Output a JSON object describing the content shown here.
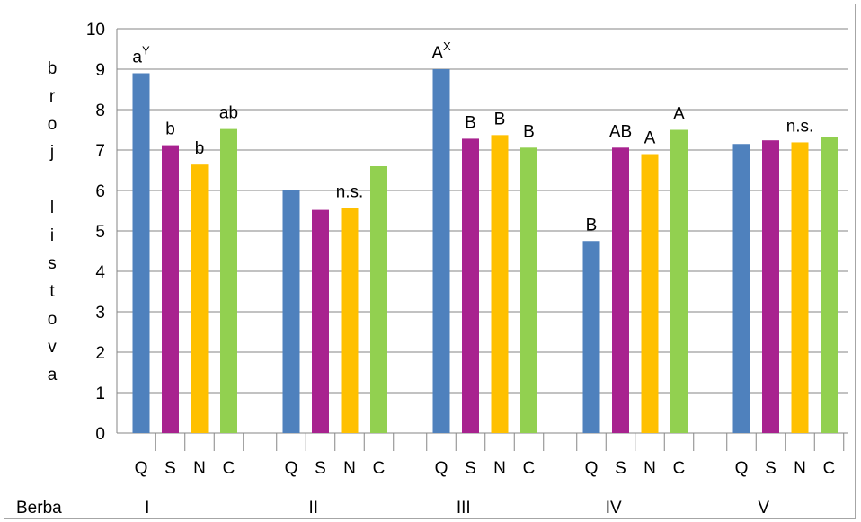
{
  "chart_data": {
    "type": "bar",
    "title": "",
    "ylabel": "broj listova",
    "ylabel_letters": [
      "b",
      "r",
      "o",
      "j",
      "",
      "l",
      "i",
      "s",
      "t",
      "o",
      "v",
      "a"
    ],
    "xlabel": "Berba",
    "ylim": [
      0,
      10
    ],
    "yticks": [
      "0",
      "1",
      "2",
      "3",
      "4",
      "5",
      "6",
      "7",
      "8",
      "9",
      "10"
    ],
    "grid": true,
    "legend": "none",
    "series_labels": [
      "Q",
      "S",
      "N",
      "C"
    ],
    "series_colors": [
      "#4f81bd",
      "#a8228f",
      "#ffc000",
      "#92d050"
    ],
    "groups": [
      {
        "label": "I",
        "values": [
          8.9,
          7.12,
          6.64,
          7.52
        ],
        "annotations": [
          {
            "text": "a",
            "sup": "Y"
          },
          {
            "text": "b",
            "sup": ""
          },
          {
            "text": "b",
            "sup": ""
          },
          {
            "text": "ab",
            "sup": ""
          }
        ]
      },
      {
        "label": "II",
        "values": [
          6.0,
          5.52,
          5.57,
          6.6
        ],
        "annotations": [
          {
            "text": "",
            "sup": ""
          },
          {
            "text": "",
            "sup": ""
          },
          {
            "text": "n.s.",
            "sup": ""
          },
          {
            "text": "",
            "sup": ""
          }
        ]
      },
      {
        "label": "III",
        "values": [
          9.0,
          7.28,
          7.37,
          7.06
        ],
        "annotations": [
          {
            "text": "A",
            "sup": "X"
          },
          {
            "text": "B",
            "sup": ""
          },
          {
            "text": "B",
            "sup": ""
          },
          {
            "text": "B",
            "sup": ""
          }
        ]
      },
      {
        "label": "IV",
        "values": [
          4.75,
          7.06,
          6.9,
          7.5
        ],
        "annotations": [
          {
            "text": "B",
            "sup": ""
          },
          {
            "text": "AB",
            "sup": ""
          },
          {
            "text": "A",
            "sup": ""
          },
          {
            "text": "A",
            "sup": ""
          }
        ]
      },
      {
        "label": "V",
        "values": [
          7.15,
          7.24,
          7.19,
          7.32
        ],
        "annotations": [
          {
            "text": "",
            "sup": ""
          },
          {
            "text": "",
            "sup": ""
          },
          {
            "text": "n.s.",
            "sup": ""
          },
          {
            "text": "",
            "sup": ""
          }
        ]
      }
    ]
  }
}
